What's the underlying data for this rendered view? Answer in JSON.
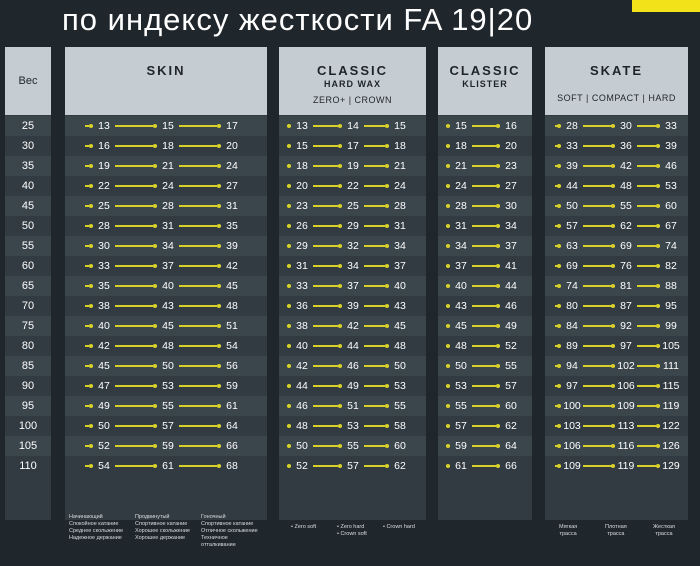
{
  "title": "по индексу жесткости FA 19|20",
  "weight_header": "Вес",
  "weights": [
    "25",
    "30",
    "35",
    "40",
    "45",
    "50",
    "55",
    "60",
    "65",
    "70",
    "75",
    "80",
    "85",
    "90",
    "95",
    "100",
    "105",
    "110"
  ],
  "columns": [
    {
      "key": "skin",
      "title": "SKIN",
      "subtitle": "",
      "subtitle2": "",
      "rows": [
        [
          "13",
          "15",
          "17"
        ],
        [
          "16",
          "18",
          "20"
        ],
        [
          "19",
          "21",
          "24"
        ],
        [
          "22",
          "24",
          "27"
        ],
        [
          "25",
          "28",
          "31"
        ],
        [
          "28",
          "31",
          "35"
        ],
        [
          "30",
          "34",
          "39"
        ],
        [
          "33",
          "37",
          "42"
        ],
        [
          "35",
          "40",
          "45"
        ],
        [
          "38",
          "43",
          "48"
        ],
        [
          "40",
          "45",
          "51"
        ],
        [
          "42",
          "48",
          "54"
        ],
        [
          "45",
          "50",
          "56"
        ],
        [
          "47",
          "53",
          "59"
        ],
        [
          "49",
          "55",
          "61"
        ],
        [
          "50",
          "57",
          "64"
        ],
        [
          "52",
          "59",
          "66"
        ],
        [
          "54",
          "61",
          "68"
        ]
      ],
      "notes": [
        "Начинающий\nСпокойное катание\nСреднее скольжение\nНадежное держание",
        "Продвинутый\nСпортивное катание\nХорошее скольжение\nХорошее держание",
        "Гоночный\nСпортивное катание\nОтличное скольжение\nТехничное\nотталкивание"
      ]
    },
    {
      "key": "classic_hard_wax",
      "title": "CLASSIC",
      "subtitle": "HARD WAX",
      "subtitle2": "ZERO+ | CROWN",
      "rows": [
        [
          "13",
          "14",
          "15"
        ],
        [
          "15",
          "17",
          "18"
        ],
        [
          "18",
          "19",
          "21"
        ],
        [
          "20",
          "22",
          "24"
        ],
        [
          "23",
          "25",
          "28"
        ],
        [
          "26",
          "29",
          "31"
        ],
        [
          "29",
          "32",
          "34"
        ],
        [
          "31",
          "34",
          "37"
        ],
        [
          "33",
          "37",
          "40"
        ],
        [
          "36",
          "39",
          "43"
        ],
        [
          "38",
          "42",
          "45"
        ],
        [
          "40",
          "44",
          "48"
        ],
        [
          "42",
          "46",
          "50"
        ],
        [
          "44",
          "49",
          "53"
        ],
        [
          "46",
          "51",
          "55"
        ],
        [
          "48",
          "53",
          "58"
        ],
        [
          "50",
          "55",
          "60"
        ],
        [
          "52",
          "57",
          "62"
        ]
      ],
      "notes": [
        "• Zero soft",
        "• Zero hard\n• Crown soft",
        "• Crown hard"
      ]
    },
    {
      "key": "classic_klister",
      "title": "CLASSIC",
      "subtitle": "KLISTER",
      "subtitle2": "",
      "rows": [
        [
          "15",
          "16"
        ],
        [
          "18",
          "20"
        ],
        [
          "21",
          "23"
        ],
        [
          "24",
          "27"
        ],
        [
          "28",
          "30"
        ],
        [
          "31",
          "34"
        ],
        [
          "34",
          "37"
        ],
        [
          "37",
          "41"
        ],
        [
          "40",
          "44"
        ],
        [
          "43",
          "46"
        ],
        [
          "45",
          "49"
        ],
        [
          "48",
          "52"
        ],
        [
          "50",
          "55"
        ],
        [
          "53",
          "57"
        ],
        [
          "55",
          "60"
        ],
        [
          "57",
          "62"
        ],
        [
          "59",
          "64"
        ],
        [
          "61",
          "66"
        ]
      ],
      "notes": []
    },
    {
      "key": "skate",
      "title": "SKATE",
      "subtitle": "",
      "subtitle2": "SOFT | COMPACT | HARD",
      "rows": [
        [
          "28",
          "30",
          "33"
        ],
        [
          "33",
          "36",
          "39"
        ],
        [
          "39",
          "42",
          "46"
        ],
        [
          "44",
          "48",
          "53"
        ],
        [
          "50",
          "55",
          "60"
        ],
        [
          "57",
          "62",
          "67"
        ],
        [
          "63",
          "69",
          "74"
        ],
        [
          "69",
          "76",
          "82"
        ],
        [
          "74",
          "81",
          "88"
        ],
        [
          "80",
          "87",
          "95"
        ],
        [
          "84",
          "92",
          "99"
        ],
        [
          "89",
          "97",
          "105"
        ],
        [
          "94",
          "102",
          "111"
        ],
        [
          "97",
          "106",
          "115"
        ],
        [
          "100",
          "109",
          "119"
        ],
        [
          "103",
          "113",
          "122"
        ],
        [
          "106",
          "116",
          "126"
        ],
        [
          "109",
          "119",
          "129"
        ]
      ],
      "notes": [
        "Мягкая\nтрасса",
        "Плотная\nтрасса",
        "Жесткая\nтрасса"
      ]
    }
  ],
  "colors": {
    "accent": "#d7d02a",
    "header_bg": "#c6cdd2",
    "panel_bg": "#323b42",
    "page_bg": "#20272c"
  }
}
